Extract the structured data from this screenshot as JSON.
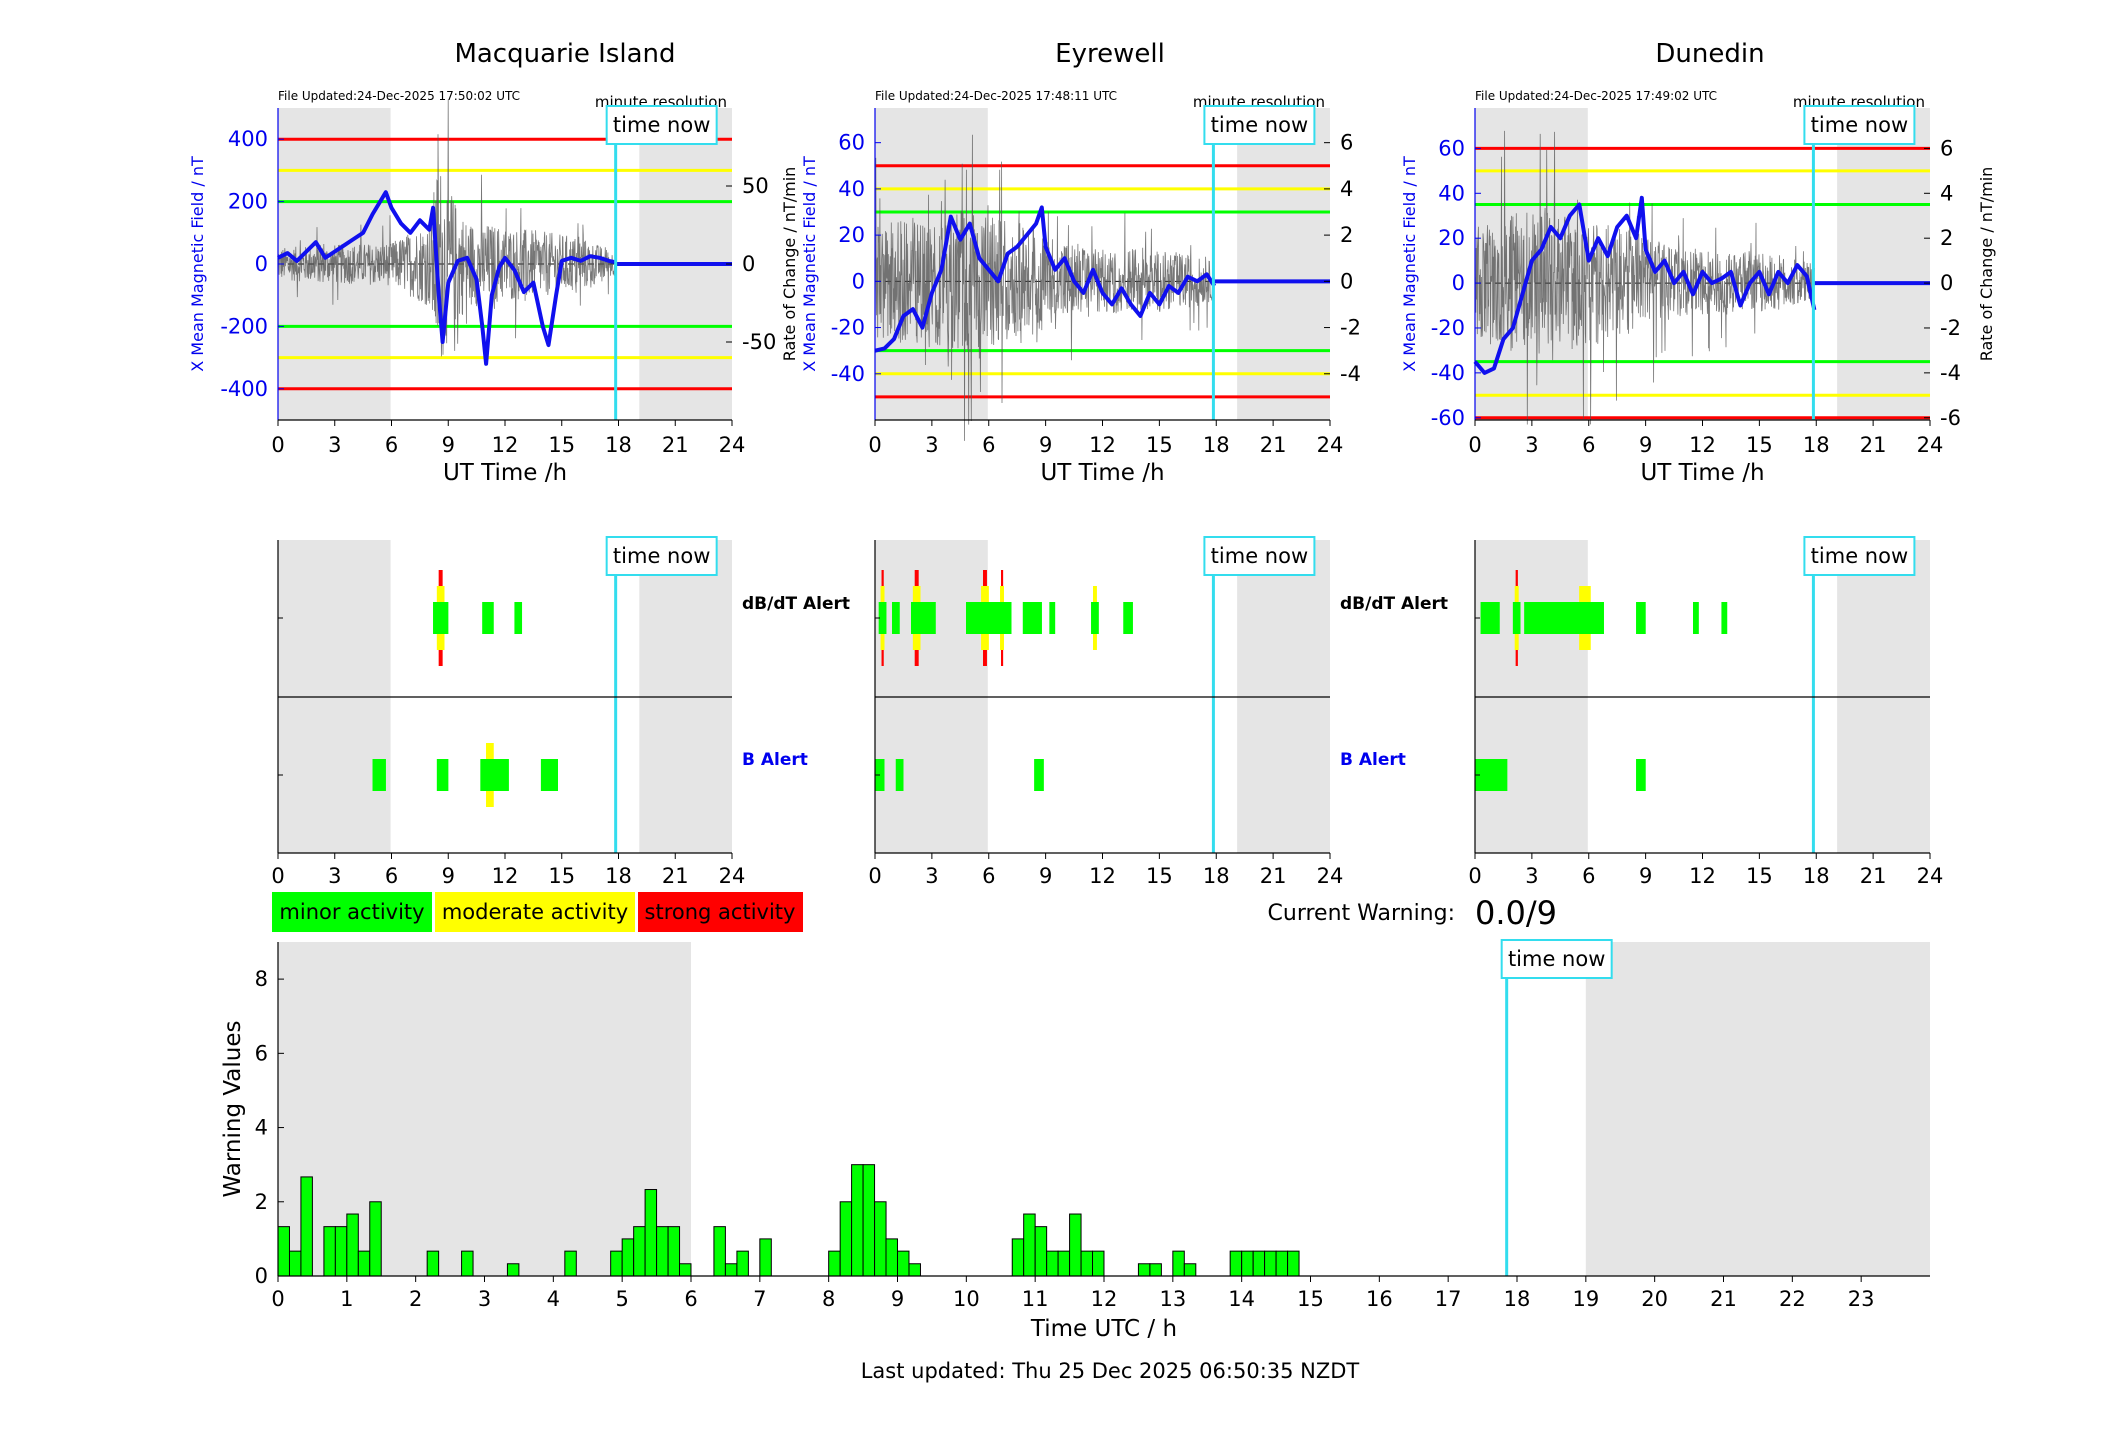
{
  "time_now_label": "time now",
  "axis_time_label": "UT Time /h",
  "resolution_label": "minute resolution",
  "alert_labels": {
    "dbdt": "dB/dT Alert",
    "b": "B Alert"
  },
  "legend": [
    {
      "label": "minor activity",
      "color": "#00ff00"
    },
    {
      "label": "moderate activity",
      "color": "#ffff00"
    },
    {
      "label": "strong activity",
      "color": "#ff0000"
    }
  ],
  "current_warning": {
    "label": "Current Warning:",
    "value": "0.0/9"
  },
  "last_updated": "Last updated: Thu 25 Dec 2025 06:50:35 NZDT",
  "colors": {
    "night_shade": "#e5e5e5",
    "time_now": "#33ddee",
    "mean": "#1010ee",
    "rate": "#555555",
    "ylabel_left": "#0000ee"
  },
  "time_now_hour": 17.85,
  "chart_data": [
    {
      "type": "line",
      "title": "Macquarie Island",
      "file_updated": "File Updated:24-Dec-2025 17:50:02 UTC",
      "xlabel": "UT Time /h",
      "ylabel": "X Mean Magnetic Field / nT",
      "ylabel_right": "",
      "xlim": [
        0,
        24
      ],
      "xticks": [
        0,
        3,
        6,
        9,
        12,
        15,
        18,
        21,
        24
      ],
      "ylim": [
        -500,
        500
      ],
      "yticks": [
        -400,
        -200,
        0,
        200,
        400
      ],
      "y2lim": [
        -100,
        100
      ],
      "y2ticks": [
        -50,
        0,
        50
      ],
      "thresholds": {
        "green": 200,
        "yellow": 300,
        "red": 400
      },
      "night_bands": [
        [
          0,
          5.95
        ],
        [
          19.1,
          24
        ]
      ],
      "mean_series": {
        "x": [
          0,
          0.5,
          1,
          1.5,
          2,
          2.5,
          3,
          3.5,
          4,
          4.5,
          5,
          5.5,
          5.7,
          6,
          6.5,
          7,
          7.5,
          8,
          8.2,
          8.5,
          8.7,
          9,
          9.5,
          10,
          10.5,
          10.8,
          11,
          11.3,
          11.7,
          12,
          12.5,
          13,
          13.5,
          14,
          14.3,
          14.7,
          15,
          15.5,
          16,
          16.5,
          17,
          17.5,
          17.9
        ],
        "y": [
          20,
          35,
          10,
          40,
          70,
          20,
          40,
          60,
          80,
          100,
          160,
          210,
          230,
          180,
          130,
          100,
          140,
          110,
          180,
          -100,
          -250,
          -60,
          10,
          20,
          -50,
          -200,
          -320,
          -100,
          -10,
          20,
          -20,
          -90,
          -60,
          -200,
          -260,
          -100,
          10,
          20,
          10,
          25,
          20,
          10,
          5
        ]
      },
      "flat_segment": {
        "x": [
          17.9,
          24
        ],
        "y": [
          0,
          0
        ]
      },
      "rate_envelope": {
        "x": [
          0,
          3,
          6,
          8,
          8.5,
          9,
          10,
          12,
          14,
          16,
          17.9
        ],
        "amp": [
          15,
          18,
          20,
          40,
          100,
          70,
          40,
          35,
          30,
          25,
          10
        ]
      }
    },
    {
      "type": "line",
      "title": "Eyrewell",
      "file_updated": "File Updated:24-Dec-2025 17:48:11 UTC",
      "xlabel": "UT Time /h",
      "ylabel": "X Mean Magnetic Field / nT",
      "ylabel_right": "Rate of Change / nT/min",
      "xlim": [
        0,
        24
      ],
      "xticks": [
        0,
        3,
        6,
        9,
        12,
        15,
        18,
        21,
        24
      ],
      "ylim": [
        -60,
        75
      ],
      "yticks": [
        -40,
        -20,
        0,
        20,
        40,
        60
      ],
      "y2lim": [
        -6,
        7.5
      ],
      "y2ticks": [
        -4,
        -2,
        0,
        2,
        4,
        6
      ],
      "thresholds": {
        "green": 30,
        "yellow": 40,
        "red": 50
      },
      "night_bands": [
        [
          0,
          5.95
        ],
        [
          19.1,
          24
        ]
      ],
      "mean_series": {
        "x": [
          0,
          0.5,
          1,
          1.5,
          2,
          2.5,
          3,
          3.5,
          4,
          4.5,
          5,
          5.5,
          6,
          6.5,
          7,
          7.5,
          8,
          8.5,
          8.8,
          9,
          9.5,
          10,
          10.5,
          11,
          11.5,
          12,
          12.5,
          13,
          13.5,
          14,
          14.5,
          15,
          15.5,
          16,
          16.5,
          17,
          17.5,
          17.9
        ],
        "y": [
          -30,
          -29,
          -25,
          -15,
          -12,
          -20,
          -5,
          5,
          28,
          18,
          25,
          10,
          5,
          0,
          12,
          15,
          20,
          25,
          32,
          15,
          5,
          10,
          0,
          -5,
          5,
          -5,
          -10,
          -3,
          -10,
          -15,
          -5,
          -10,
          -2,
          -5,
          2,
          0,
          3,
          -2
        ]
      },
      "flat_segment": {
        "x": [
          17.9,
          24
        ],
        "y": [
          0,
          0
        ]
      },
      "rate_envelope": {
        "x": [
          0,
          2,
          4,
          6,
          8,
          10,
          12,
          14,
          16,
          17.9
        ],
        "amp": [
          3.5,
          4,
          4.5,
          4,
          3.5,
          2.5,
          2,
          2,
          1.8,
          1.2
        ]
      }
    },
    {
      "type": "line",
      "title": "Dunedin",
      "file_updated": "File Updated:24-Dec-2025 17:49:02 UTC",
      "xlabel": "UT Time /h",
      "ylabel": "X Mean Magnetic Field / nT",
      "ylabel_right": "Rate of Change / nT/min",
      "xlim": [
        0,
        24
      ],
      "xticks": [
        0,
        3,
        6,
        9,
        12,
        15,
        18,
        21,
        24
      ],
      "ylim": [
        -61,
        78
      ],
      "yticks": [
        -60,
        -40,
        -20,
        0,
        20,
        40,
        60
      ],
      "y2lim": [
        -6.1,
        7.8
      ],
      "y2ticks": [
        -6,
        -4,
        -2,
        0,
        2,
        4,
        6
      ],
      "thresholds": {
        "green": 35,
        "yellow": 50,
        "red": 60
      },
      "night_bands": [
        [
          0,
          5.95
        ],
        [
          19.1,
          24
        ]
      ],
      "mean_series": {
        "x": [
          0,
          0.5,
          1,
          1.5,
          2,
          2.5,
          3,
          3.5,
          4,
          4.5,
          5,
          5.5,
          6,
          6.5,
          7,
          7.5,
          8,
          8.5,
          8.8,
          9,
          9.5,
          10,
          10.5,
          11,
          11.5,
          12,
          12.5,
          13,
          13.5,
          14,
          14.5,
          15,
          15.5,
          16,
          16.5,
          17,
          17.5,
          17.9
        ],
        "y": [
          -35,
          -40,
          -38,
          -25,
          -20,
          -5,
          10,
          15,
          25,
          20,
          30,
          35,
          10,
          20,
          12,
          25,
          30,
          20,
          38,
          15,
          5,
          10,
          0,
          5,
          -5,
          5,
          0,
          2,
          5,
          -10,
          0,
          5,
          -5,
          5,
          0,
          8,
          3,
          -12
        ]
      },
      "flat_segment": {
        "x": [
          17.9,
          24
        ],
        "y": [
          0,
          0
        ]
      },
      "rate_envelope": {
        "x": [
          0,
          2,
          4,
          6,
          8,
          10,
          12,
          14,
          16,
          17.9
        ],
        "amp": [
          3.5,
          4.5,
          4.5,
          4,
          3.5,
          2.5,
          2,
          2,
          1.8,
          1.2
        ]
      }
    },
    {
      "type": "bar",
      "title": "",
      "xlabel": "Time UTC / h",
      "ylabel": "Warning Values",
      "xlim": [
        0,
        24
      ],
      "xticks": [
        0,
        1,
        2,
        3,
        4,
        5,
        6,
        7,
        8,
        9,
        10,
        11,
        12,
        13,
        14,
        15,
        16,
        17,
        18,
        19,
        20,
        21,
        22,
        23
      ],
      "ylim": [
        0,
        9
      ],
      "yticks": [
        0,
        2,
        4,
        6,
        8
      ],
      "bin_width_h": 0.1667,
      "night_bands": [
        [
          0,
          6
        ],
        [
          19,
          24
        ]
      ],
      "bars": {
        "x": [
          0,
          0.167,
          0.333,
          0.667,
          0.833,
          1.0,
          1.167,
          1.333,
          2.167,
          2.667,
          3.333,
          4.167,
          4.833,
          5.0,
          5.167,
          5.333,
          5.5,
          5.667,
          5.833,
          6.333,
          6.5,
          6.667,
          7.0,
          8.0,
          8.167,
          8.333,
          8.5,
          8.667,
          8.833,
          9.0,
          9.167,
          10.667,
          10.833,
          11.0,
          11.167,
          11.333,
          11.5,
          11.667,
          11.833,
          12.5,
          12.667,
          13.0,
          13.167,
          13.833,
          14.0,
          14.167,
          14.333,
          14.5,
          14.667
        ],
        "values": [
          1.33,
          0.67,
          2.67,
          1.33,
          1.33,
          1.67,
          0.67,
          2.0,
          0.67,
          0.67,
          0.33,
          0.67,
          0.67,
          1.0,
          1.33,
          2.33,
          1.33,
          1.33,
          0.33,
          1.33,
          0.33,
          0.67,
          1.0,
          0.67,
          2.0,
          3.0,
          3.0,
          2.0,
          1.0,
          0.67,
          0.33,
          1.0,
          1.67,
          1.33,
          0.67,
          0.67,
          1.67,
          0.67,
          0.67,
          0.33,
          0.33,
          0.67,
          0.33,
          0.67,
          0.67,
          0.67,
          0.67,
          0.67,
          0.67
        ]
      }
    }
  ],
  "alerts": [
    {
      "station": "Macquarie Island",
      "dbdt": [
        {
          "start": 8.2,
          "end": 9.0,
          "level": "minor"
        },
        {
          "start": 8.4,
          "end": 8.8,
          "level": "moderate"
        },
        {
          "start": 8.5,
          "end": 8.7,
          "level": "strong"
        },
        {
          "start": 10.8,
          "end": 11.4,
          "level": "minor"
        },
        {
          "start": 12.5,
          "end": 12.9,
          "level": "minor"
        }
      ],
      "b": [
        {
          "start": 5.0,
          "end": 5.7,
          "level": "minor"
        },
        {
          "start": 8.4,
          "end": 9.0,
          "level": "minor"
        },
        {
          "start": 10.7,
          "end": 12.2,
          "level": "minor"
        },
        {
          "start": 11.0,
          "end": 11.4,
          "level": "moderate"
        },
        {
          "start": 13.9,
          "end": 14.8,
          "level": "minor"
        }
      ]
    },
    {
      "station": "Eyrewell",
      "dbdt": [
        {
          "start": 0.2,
          "end": 0.6,
          "level": "minor"
        },
        {
          "start": 0.3,
          "end": 0.5,
          "level": "moderate"
        },
        {
          "start": 0.35,
          "end": 0.45,
          "level": "strong"
        },
        {
          "start": 0.9,
          "end": 1.3,
          "level": "minor"
        },
        {
          "start": 1.9,
          "end": 3.2,
          "level": "minor"
        },
        {
          "start": 2.0,
          "end": 2.4,
          "level": "moderate"
        },
        {
          "start": 2.1,
          "end": 2.3,
          "level": "strong"
        },
        {
          "start": 4.8,
          "end": 7.2,
          "level": "minor"
        },
        {
          "start": 5.6,
          "end": 6.0,
          "level": "moderate"
        },
        {
          "start": 5.7,
          "end": 5.9,
          "level": "strong"
        },
        {
          "start": 6.6,
          "end": 6.8,
          "level": "moderate"
        },
        {
          "start": 6.65,
          "end": 6.75,
          "level": "strong"
        },
        {
          "start": 7.8,
          "end": 8.8,
          "level": "minor"
        },
        {
          "start": 9.2,
          "end": 9.5,
          "level": "minor"
        },
        {
          "start": 11.4,
          "end": 11.8,
          "level": "minor"
        },
        {
          "start": 11.5,
          "end": 11.7,
          "level": "moderate"
        },
        {
          "start": 13.1,
          "end": 13.6,
          "level": "minor"
        }
      ],
      "b": [
        {
          "start": 0.0,
          "end": 0.5,
          "level": "minor"
        },
        {
          "start": 1.1,
          "end": 1.5,
          "level": "minor"
        },
        {
          "start": 8.4,
          "end": 8.9,
          "level": "minor"
        }
      ]
    },
    {
      "station": "Dunedin",
      "dbdt": [
        {
          "start": 0.3,
          "end": 1.3,
          "level": "minor"
        },
        {
          "start": 2.0,
          "end": 2.4,
          "level": "minor"
        },
        {
          "start": 2.1,
          "end": 2.3,
          "level": "moderate"
        },
        {
          "start": 2.15,
          "end": 2.25,
          "level": "strong"
        },
        {
          "start": 2.6,
          "end": 6.8,
          "level": "minor"
        },
        {
          "start": 5.5,
          "end": 6.1,
          "level": "moderate"
        },
        {
          "start": 8.5,
          "end": 9.0,
          "level": "minor"
        },
        {
          "start": 11.5,
          "end": 11.8,
          "level": "minor"
        },
        {
          "start": 13.0,
          "end": 13.3,
          "level": "minor"
        }
      ],
      "b": [
        {
          "start": 0.0,
          "end": 1.7,
          "level": "minor"
        },
        {
          "start": 8.5,
          "end": 9.0,
          "level": "minor"
        }
      ]
    }
  ]
}
